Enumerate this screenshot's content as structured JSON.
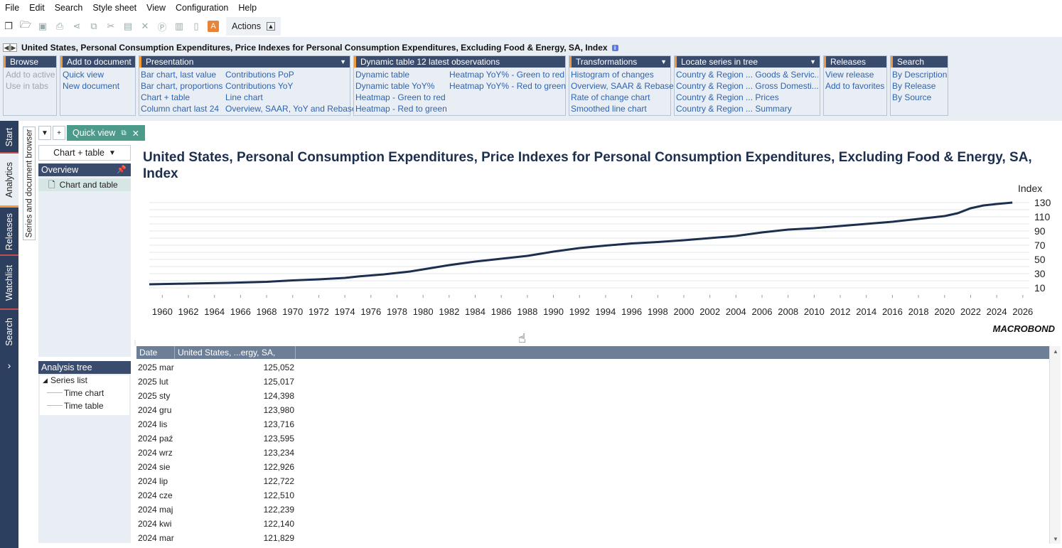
{
  "menu": [
    "File",
    "Edit",
    "Search",
    "Style sheet",
    "View",
    "Configuration",
    "Help"
  ],
  "toolbar": {
    "actions_label": "Actions",
    "orange_icon_letter": "A"
  },
  "ribbon": {
    "series_title": "United States, Personal Consumption Expenditures, Price Indexes for Personal Consumption Expenditures, Excluding Food & Energy, SA, Index",
    "groups": {
      "browse": {
        "title": "Browse",
        "items": [
          "Add to active",
          "Use in tabs"
        ]
      },
      "add": {
        "title": "Add to document",
        "items": [
          "Quick view",
          "New document"
        ]
      },
      "presentation": {
        "title": "Presentation",
        "col1": [
          "Bar chart, last value",
          "Bar chart, proportions",
          "Chart + table",
          "Column chart last 24"
        ],
        "col2": [
          "Contributions PoP",
          "Contributions YoY",
          "Line chart",
          "Overview, SAAR, YoY and Rebase"
        ]
      },
      "dynamic": {
        "title": "Dynamic table 12 latest observations",
        "col1": [
          "Dynamic table",
          "Dynamic table YoY%",
          "Heatmap - Green to red",
          "Heatmap - Red to green"
        ],
        "col2": [
          "Heatmap YoY% - Green to red",
          "Heatmap YoY% - Red to green"
        ]
      },
      "transformations": {
        "title": "Transformations",
        "items": [
          "Histogram of changes",
          "Overview, SAAR & Rebase",
          "Rate of change chart",
          "Smoothed line chart"
        ]
      },
      "locate": {
        "title": "Locate series in tree",
        "items": [
          "Country & Region ... Goods & Servic...",
          "Country & Region ... Gross Domesti...",
          "Country & Region ... Prices",
          "Country & Region ... Summary"
        ]
      },
      "releases": {
        "title": "Releases",
        "items": [
          "View release",
          "Add to favorites"
        ]
      },
      "search": {
        "title": "Search",
        "items": [
          "By Description",
          "By Release",
          "By Source"
        ]
      }
    }
  },
  "vtabs": [
    "Start",
    "Analytics",
    "Releases",
    "Watchlist",
    "Search"
  ],
  "browser_tab": "Series and document browser",
  "doc_tab": "Quick view",
  "view_select": "Chart + table",
  "overview": {
    "title": "Overview",
    "item": "Chart and table"
  },
  "analysis_tree": {
    "title": "Analysis tree",
    "root": "Series list",
    "children": [
      "Time chart",
      "Time table"
    ]
  },
  "chart_title": "United States, Personal Consumption Expenditures, Price Indexes for Personal Consumption Expenditures, Excluding Food & Energy, SA, Index",
  "brand": "MACROBOND",
  "chart_data": {
    "type": "line",
    "title": "United States, Personal Consumption Expenditures, Price Indexes for Personal Consumption Expenditures, Excluding Food & Energy, SA, Index",
    "ylabel": "Index",
    "xlim": [
      1959,
      2026.5
    ],
    "ylim": [
      0,
      135
    ],
    "yticks": [
      10,
      30,
      50,
      70,
      90,
      110,
      130
    ],
    "xticks": [
      1960,
      1962,
      1964,
      1966,
      1968,
      1970,
      1972,
      1974,
      1976,
      1978,
      1980,
      1982,
      1984,
      1986,
      1988,
      1990,
      1992,
      1994,
      1996,
      1998,
      2000,
      2002,
      2004,
      2006,
      2008,
      2010,
      2012,
      2014,
      2016,
      2018,
      2020,
      2022,
      2024,
      2026
    ],
    "color": "#1d2f4f",
    "series": [
      {
        "x": [
          1959,
          1962,
          1965,
          1968,
          1970,
          1972,
          1974,
          1975,
          1977,
          1979,
          1980,
          1982,
          1984,
          1986,
          1988,
          1990,
          1992,
          1994,
          1996,
          1998,
          2000,
          2002,
          2004,
          2006,
          2008,
          2009,
          2010,
          2012,
          2014,
          2016,
          2018,
          2020,
          2021,
          2022,
          2023,
          2024,
          2025.2
        ],
        "values": [
          15,
          16,
          17,
          18.5,
          20.5,
          22,
          24,
          26,
          29,
          33,
          36,
          42,
          47,
          51,
          55,
          61,
          66,
          69.5,
          72.5,
          74.5,
          77,
          80,
          83,
          88,
          92,
          93,
          94,
          97,
          100,
          103,
          107,
          111,
          115,
          122,
          126,
          128,
          130
        ]
      }
    ]
  },
  "table": {
    "headers": [
      "Date",
      "United States, ...ergy, SA, Index"
    ],
    "rows": [
      [
        "2025 mar",
        "125,052"
      ],
      [
        "2025 lut",
        "125,017"
      ],
      [
        "2025 sty",
        "124,398"
      ],
      [
        "2024 gru",
        "123,980"
      ],
      [
        "2024 lis",
        "123,716"
      ],
      [
        "2024 paź",
        "123,595"
      ],
      [
        "2024 wrz",
        "123,234"
      ],
      [
        "2024 sie",
        "122,926"
      ],
      [
        "2024 lip",
        "122,722"
      ],
      [
        "2024 cze",
        "122,510"
      ],
      [
        "2024 maj",
        "122,239"
      ],
      [
        "2024 kwi",
        "122,140"
      ],
      [
        "2024 mar",
        "121,829"
      ]
    ]
  }
}
